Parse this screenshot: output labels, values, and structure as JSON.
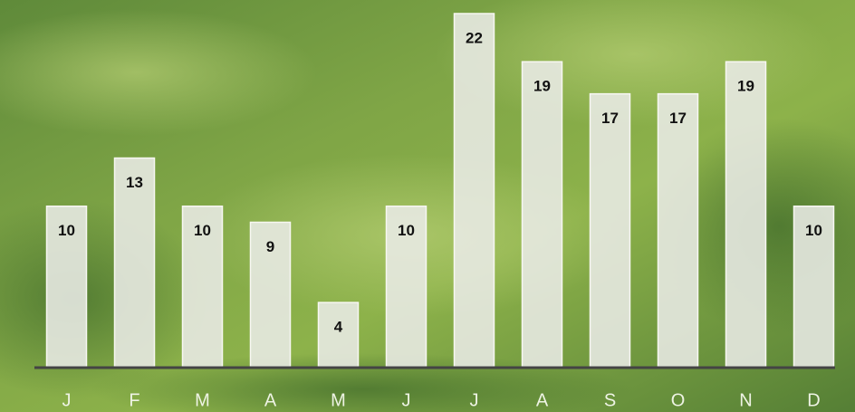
{
  "chart_data": {
    "type": "bar",
    "categories": [
      "J",
      "F",
      "M",
      "A",
      "M",
      "J",
      "J",
      "A",
      "S",
      "O",
      "N",
      "D"
    ],
    "values": [
      10,
      13,
      10,
      9,
      4,
      10,
      22,
      19,
      17,
      17,
      19,
      10
    ],
    "color": "#e9ebe6"
  }
}
